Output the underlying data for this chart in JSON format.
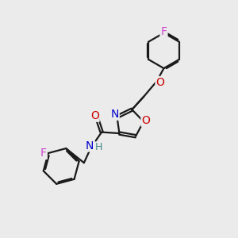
{
  "bg_color": "#ebebeb",
  "bond_color": "#1a1a1a",
  "bond_width": 1.6,
  "atom_colors": {
    "N": "#0000cc",
    "O": "#cc0000",
    "F": "#cc44cc",
    "H": "#448888",
    "C": "#1a1a1a"
  },
  "font_size": 9,
  "figsize": [
    3.0,
    3.0
  ],
  "dpi": 100,
  "xlim": [
    0,
    10
  ],
  "ylim": [
    0,
    10
  ]
}
